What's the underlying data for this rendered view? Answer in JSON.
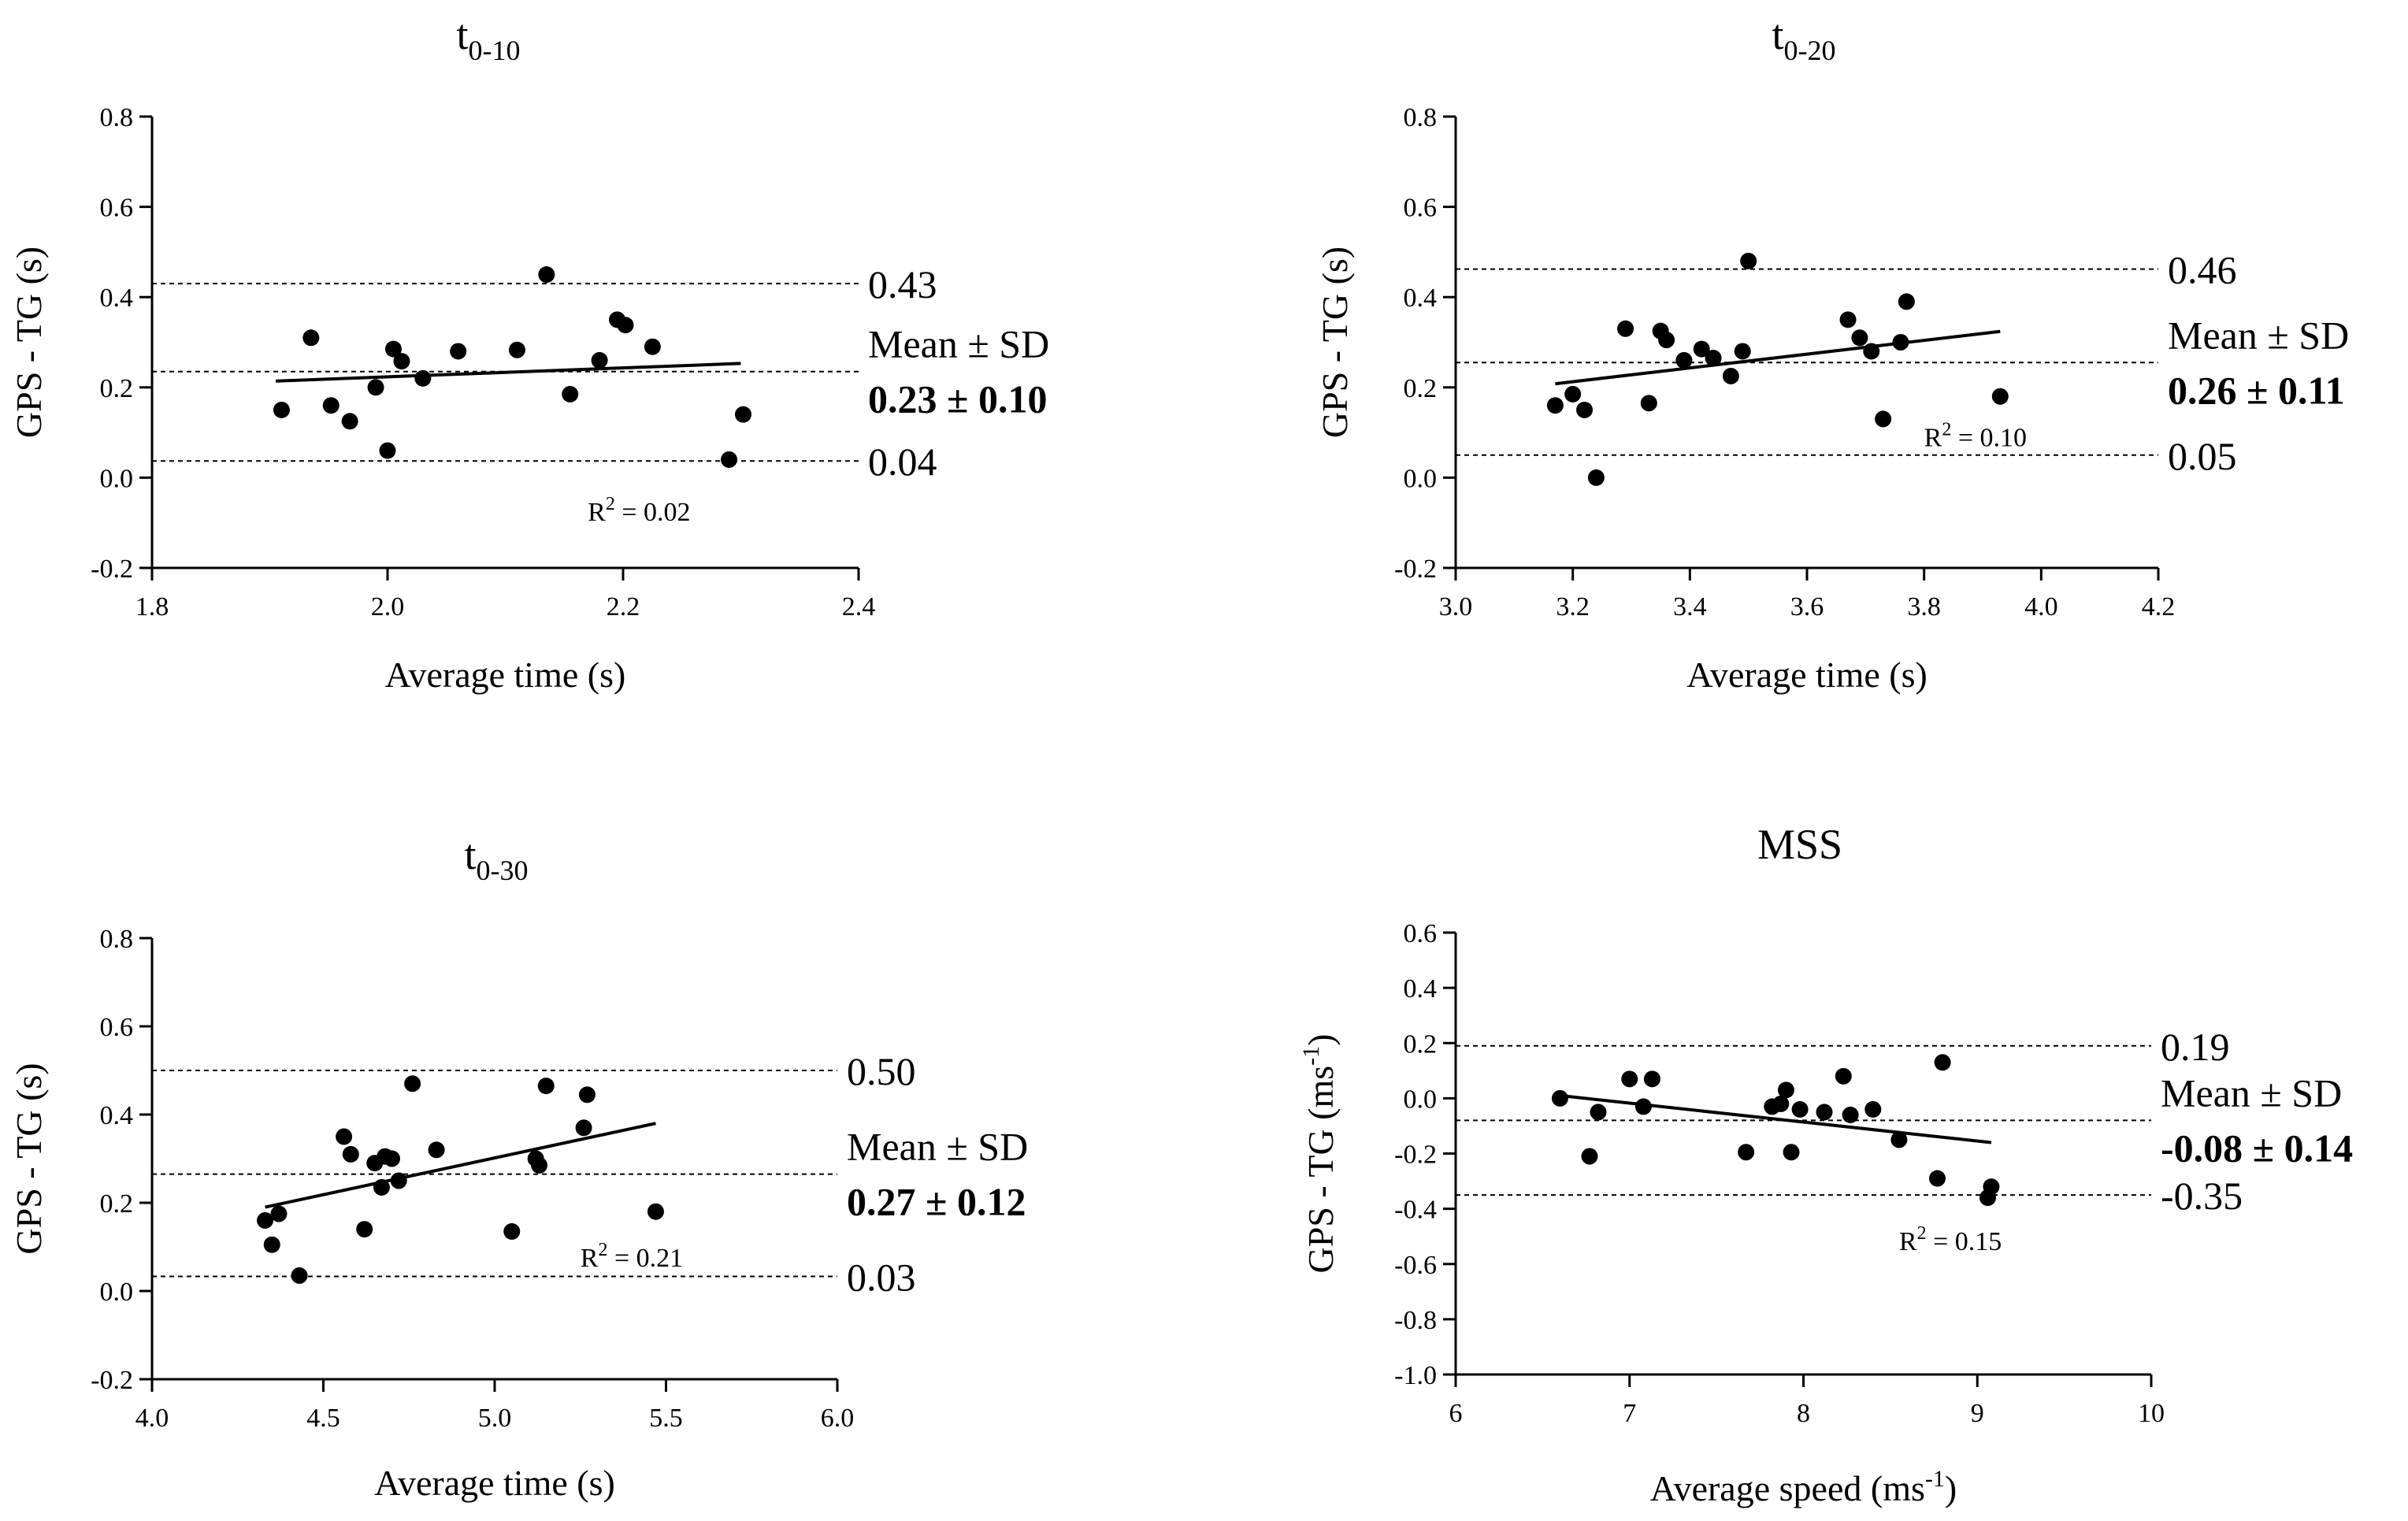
{
  "chart_data": [
    {
      "type": "scatter",
      "title": "t",
      "title_sub": "0-10",
      "xlabel": "Average time (s)",
      "ylabel": "GPS - TG  (s)",
      "xlim": [
        1.8,
        2.4
      ],
      "ylim": [
        -0.2,
        0.8
      ],
      "xticks": [
        1.8,
        2.0,
        2.2,
        2.4
      ],
      "xtick_labels": [
        "1.8",
        "2.0",
        "2.2",
        "2.4"
      ],
      "yticks": [
        -0.2,
        0.0,
        0.2,
        0.4,
        0.6,
        0.8
      ],
      "ytick_labels": [
        "-0.2",
        "0.0",
        "0.2",
        "0.4",
        "0.6",
        "0.8"
      ],
      "points": [
        [
          1.91,
          0.15
        ],
        [
          1.935,
          0.31
        ],
        [
          1.952,
          0.16
        ],
        [
          1.968,
          0.125
        ],
        [
          1.99,
          0.2
        ],
        [
          2.0,
          0.06
        ],
        [
          2.005,
          0.285
        ],
        [
          2.012,
          0.258
        ],
        [
          2.03,
          0.22
        ],
        [
          2.06,
          0.28
        ],
        [
          2.11,
          0.283
        ],
        [
          2.135,
          0.45
        ],
        [
          2.155,
          0.185
        ],
        [
          2.18,
          0.26
        ],
        [
          2.195,
          0.35
        ],
        [
          2.202,
          0.338
        ],
        [
          2.225,
          0.29
        ],
        [
          2.29,
          0.04
        ],
        [
          2.302,
          0.14
        ]
      ],
      "regression": [
        [
          1.905,
          0.214
        ],
        [
          2.3,
          0.253
        ]
      ],
      "mean": 0.235,
      "upper_loa": 0.43,
      "lower_loa": 0.037,
      "upper_label": "0.43",
      "mean_label": "Mean ± SD",
      "mean_value": "0.23 ± 0.10",
      "lower_label": "0.04",
      "r2": "R",
      "r2_sup": "2",
      "r2_value": " = 0.02",
      "r2_pos": [
        2.17,
        -0.095
      ]
    },
    {
      "type": "scatter",
      "title": "t",
      "title_sub": "0-20",
      "xlabel": "Average time (s)",
      "ylabel": "GPS - TG  (s)",
      "xlim": [
        3.0,
        4.2
      ],
      "ylim": [
        -0.2,
        0.8
      ],
      "xticks": [
        3.0,
        3.2,
        3.4,
        3.6,
        3.8,
        4.0,
        4.2
      ],
      "xtick_labels": [
        "3.0",
        "3.2",
        "3.4",
        "3.6",
        "3.8",
        "4.0",
        "4.2"
      ],
      "yticks": [
        -0.2,
        0.0,
        0.2,
        0.4,
        0.6,
        0.8
      ],
      "ytick_labels": [
        "-0.2",
        "0.0",
        "0.2",
        "0.4",
        "0.6",
        "0.8"
      ],
      "points": [
        [
          3.17,
          0.16
        ],
        [
          3.2,
          0.185
        ],
        [
          3.22,
          0.15
        ],
        [
          3.24,
          0.0
        ],
        [
          3.29,
          0.33
        ],
        [
          3.33,
          0.165
        ],
        [
          3.35,
          0.325
        ],
        [
          3.36,
          0.305
        ],
        [
          3.39,
          0.26
        ],
        [
          3.42,
          0.285
        ],
        [
          3.44,
          0.265
        ],
        [
          3.47,
          0.225
        ],
        [
          3.49,
          0.28
        ],
        [
          3.5,
          0.48
        ],
        [
          3.67,
          0.35
        ],
        [
          3.69,
          0.31
        ],
        [
          3.71,
          0.28
        ],
        [
          3.73,
          0.13
        ],
        [
          3.76,
          0.3
        ],
        [
          3.77,
          0.39
        ],
        [
          3.93,
          0.18
        ]
      ],
      "regression": [
        [
          3.17,
          0.208
        ],
        [
          3.93,
          0.324
        ]
      ],
      "mean": 0.255,
      "upper_loa": 0.462,
      "lower_loa": 0.05,
      "upper_label": "0.46",
      "mean_label": "Mean ± SD",
      "mean_value": "0.26 ± 0.11",
      "lower_label": "0.05",
      "r2": "R",
      "r2_sup": "2",
      "r2_value": " = 0.10",
      "r2_pos": [
        3.8,
        0.07
      ]
    },
    {
      "type": "scatter",
      "title": "t",
      "title_sub": "0-30",
      "xlabel": "Average time (s)",
      "ylabel": "GPS - TG  (s)",
      "xlim": [
        4.0,
        6.0
      ],
      "ylim": [
        -0.2,
        0.8
      ],
      "xticks": [
        4.0,
        4.5,
        5.0,
        5.5,
        6.0
      ],
      "xtick_labels": [
        "4.0",
        "4.5",
        "5.0",
        "5.5",
        "6.0"
      ],
      "yticks": [
        -0.2,
        0.0,
        0.2,
        0.4,
        0.6,
        0.8
      ],
      "ytick_labels": [
        "-0.2",
        "0.0",
        "0.2",
        "0.4",
        "0.6",
        "0.8"
      ],
      "points": [
        [
          4.33,
          0.16
        ],
        [
          4.35,
          0.105
        ],
        [
          4.37,
          0.175
        ],
        [
          4.43,
          0.035
        ],
        [
          4.56,
          0.35
        ],
        [
          4.58,
          0.31
        ],
        [
          4.62,
          0.14
        ],
        [
          4.65,
          0.29
        ],
        [
          4.67,
          0.235
        ],
        [
          4.68,
          0.305
        ],
        [
          4.7,
          0.3
        ],
        [
          4.72,
          0.25
        ],
        [
          4.76,
          0.47
        ],
        [
          4.83,
          0.32
        ],
        [
          5.05,
          0.135
        ],
        [
          5.12,
          0.3
        ],
        [
          5.13,
          0.285
        ],
        [
          5.15,
          0.465
        ],
        [
          5.26,
          0.37
        ],
        [
          5.27,
          0.445
        ],
        [
          5.47,
          0.18
        ]
      ],
      "regression": [
        [
          4.33,
          0.19
        ],
        [
          5.47,
          0.38
        ]
      ],
      "mean": 0.265,
      "upper_loa": 0.5,
      "lower_loa": 0.033,
      "upper_label": "0.50",
      "mean_label": "Mean ± SD",
      "mean_value": "0.27 ± 0.12",
      "lower_label": "0.03",
      "r2": "R",
      "r2_sup": "2",
      "r2_value": " = 0.21",
      "r2_pos": [
        5.25,
        0.055
      ]
    },
    {
      "type": "scatter",
      "title": "MSS",
      "title_sub": "",
      "xlabel": "Average speed (ms",
      "xlabel_sup": "-1",
      "xlabel_end": ")",
      "ylabel": "GPS - TG  (ms",
      "ylabel_sup": "-1",
      "ylabel_end": ")",
      "xlim": [
        6,
        10
      ],
      "ylim": [
        -1.0,
        0.6
      ],
      "xticks": [
        6,
        7,
        8,
        9,
        10
      ],
      "xtick_labels": [
        "6",
        "7",
        "8",
        "9",
        "10"
      ],
      "yticks": [
        -1.0,
        -0.8,
        -0.6,
        -0.4,
        -0.2,
        0.0,
        0.2,
        0.4,
        0.6
      ],
      "ytick_labels": [
        "-1.0",
        "-0.8",
        "-0.6",
        "-0.4",
        "-0.2",
        "0.0",
        "0.2",
        "0.4",
        "0.6"
      ],
      "points": [
        [
          6.6,
          0.0
        ],
        [
          6.77,
          -0.21
        ],
        [
          6.82,
          -0.05
        ],
        [
          7.0,
          0.07
        ],
        [
          7.08,
          -0.03
        ],
        [
          7.13,
          0.07
        ],
        [
          7.67,
          -0.195
        ],
        [
          7.82,
          -0.03
        ],
        [
          7.87,
          -0.02
        ],
        [
          7.9,
          0.03
        ],
        [
          7.93,
          -0.195
        ],
        [
          7.98,
          -0.04
        ],
        [
          8.12,
          -0.05
        ],
        [
          8.23,
          0.08
        ],
        [
          8.27,
          -0.06
        ],
        [
          8.4,
          -0.04
        ],
        [
          8.55,
          -0.15
        ],
        [
          8.77,
          -0.29
        ],
        [
          8.8,
          0.13
        ],
        [
          9.06,
          -0.36
        ],
        [
          9.08,
          -0.32
        ]
      ],
      "regression": [
        [
          6.6,
          0.01
        ],
        [
          9.08,
          -0.16
        ]
      ],
      "mean": -0.08,
      "upper_loa": 0.19,
      "lower_loa": -0.35,
      "upper_label": "0.19",
      "mean_label": "Mean ± SD",
      "mean_value": "-0.08 ± 0.14",
      "lower_label": "-0.35",
      "r2": "R",
      "r2_sup": "2",
      "r2_value": " = 0.15",
      "r2_pos": [
        8.55,
        -0.55
      ]
    }
  ]
}
